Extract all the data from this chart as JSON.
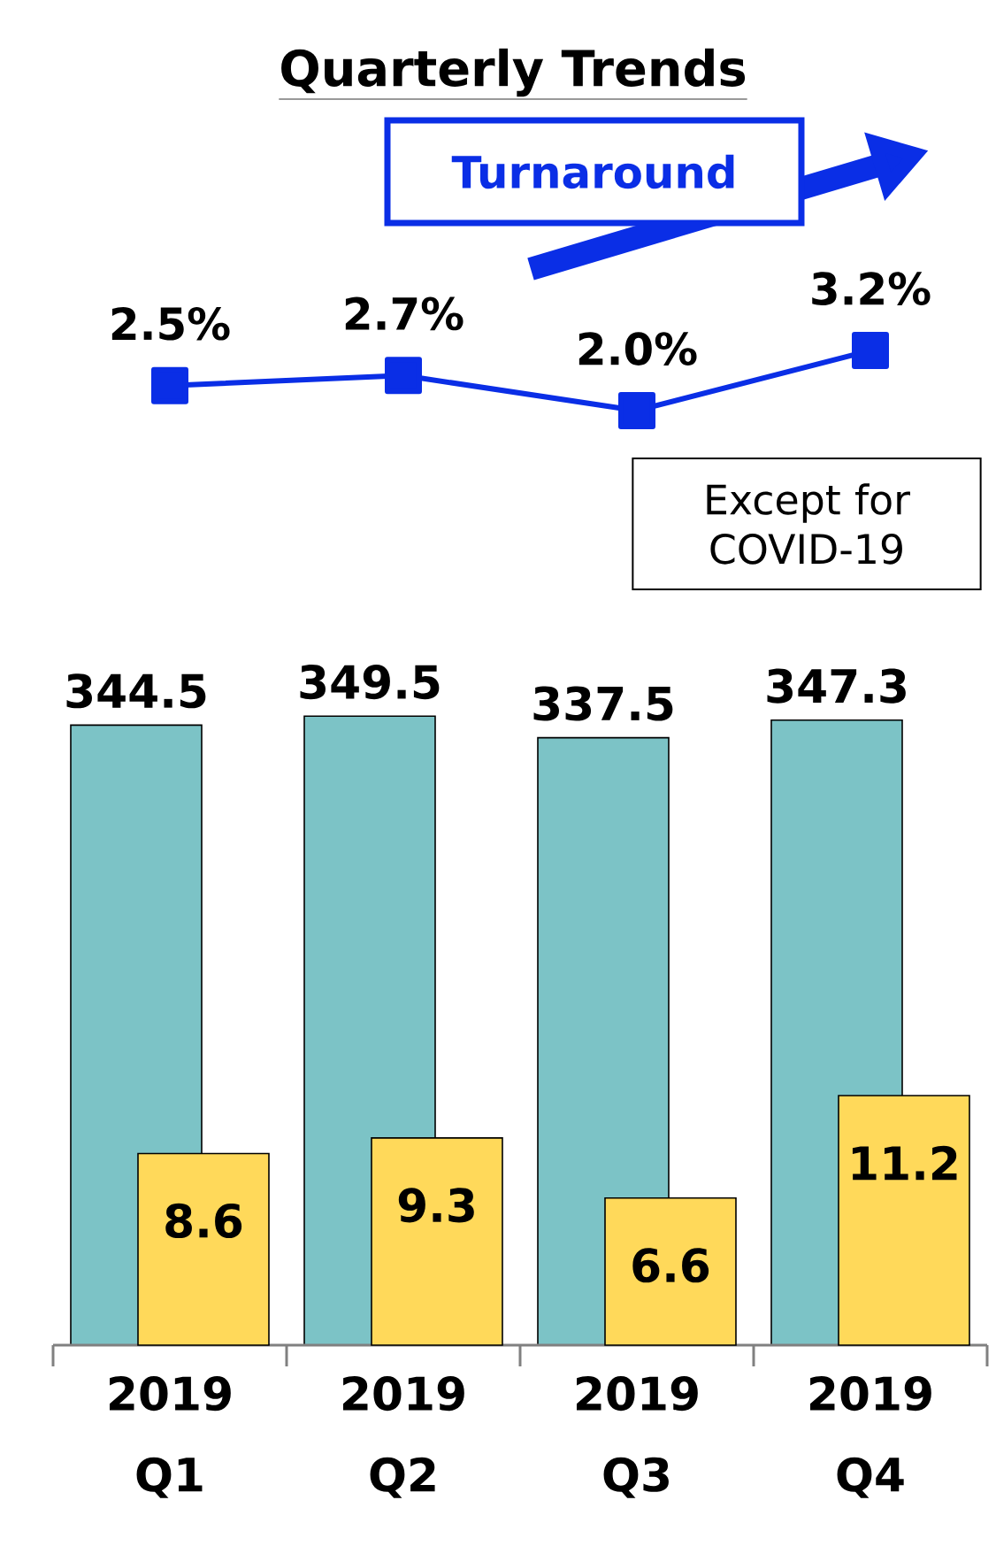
{
  "chart_data": [
    {
      "type": "line",
      "title": "Quarterly Trends",
      "series": [
        {
          "color": "#0a2ee6",
          "values": [
            2.5,
            2.7,
            2.0,
            3.2
          ],
          "value_labels": [
            "2.5%",
            "2.7%",
            "2.0%",
            "3.2%"
          ]
        }
      ],
      "marker": "square",
      "tick_labels": false,
      "annotations": [
        "Turnaround",
        "Except for COVID-19"
      ]
    },
    {
      "type": "bar",
      "categories": [
        "2019 Q1",
        "2019 Q2",
        "2019 Q3",
        "2019 Q4"
      ],
      "series": [
        {
          "color": "#7cc3c6",
          "values": [
            344.5,
            349.5,
            337.5,
            347.3
          ]
        },
        {
          "color": "#ffd95a",
          "values": [
            8.6,
            9.3,
            6.6,
            11.2
          ],
          "axis": "y2"
        }
      ],
      "data_labels": true,
      "tick_labels": "x"
    }
  ]
}
